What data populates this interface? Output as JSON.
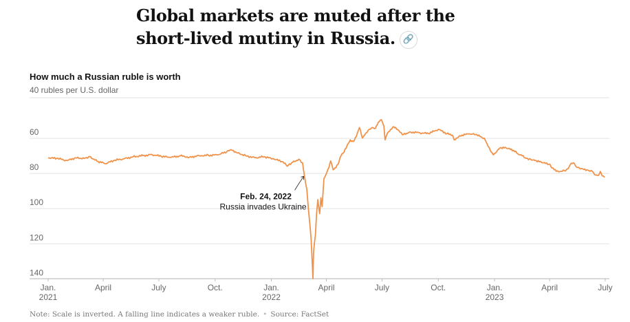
{
  "headline": "Global markets are muted after the short-lived mutiny in Russia.",
  "icons": {
    "link": "link-icon"
  },
  "chart_data": {
    "type": "line",
    "title": "How much a Russian ruble is worth",
    "ylabel": "40 rubles per U.S. dollar",
    "y_inverted": true,
    "ylim": [
      40,
      143
    ],
    "y_ticks": [
      60,
      80,
      100,
      120,
      140
    ],
    "grid": true,
    "line_color": "#f0924a",
    "x_ticks": [
      {
        "date": "2021-01-01",
        "label": "Jan.",
        "year": "2021"
      },
      {
        "date": "2021-04-01",
        "label": "April",
        "year": ""
      },
      {
        "date": "2021-07-01",
        "label": "July",
        "year": ""
      },
      {
        "date": "2021-10-01",
        "label": "Oct.",
        "year": ""
      },
      {
        "date": "2022-01-01",
        "label": "Jan.",
        "year": "2022"
      },
      {
        "date": "2022-04-01",
        "label": "April",
        "year": ""
      },
      {
        "date": "2022-07-01",
        "label": "July",
        "year": ""
      },
      {
        "date": "2022-10-01",
        "label": "Oct.",
        "year": ""
      },
      {
        "date": "2023-01-01",
        "label": "Jan.",
        "year": "2023"
      },
      {
        "date": "2023-04-01",
        "label": "April",
        "year": ""
      },
      {
        "date": "2023-07-01",
        "label": "July",
        "year": ""
      }
    ],
    "series": [
      {
        "points": [
          [
            "2021-01-01",
            74.3
          ],
          [
            "2021-01-15",
            74.5
          ],
          [
            "2021-02-01",
            75.8
          ],
          [
            "2021-02-15",
            74.2
          ],
          [
            "2021-03-01",
            74.6
          ],
          [
            "2021-03-10",
            73.5
          ],
          [
            "2021-03-22",
            76.2
          ],
          [
            "2021-04-05",
            77.5
          ],
          [
            "2021-04-20",
            75.6
          ],
          [
            "2021-05-05",
            74.8
          ],
          [
            "2021-05-20",
            73.6
          ],
          [
            "2021-06-05",
            73.0
          ],
          [
            "2021-06-20",
            72.4
          ],
          [
            "2021-07-05",
            73.4
          ],
          [
            "2021-07-20",
            74.0
          ],
          [
            "2021-08-05",
            73.1
          ],
          [
            "2021-08-20",
            73.9
          ],
          [
            "2021-09-05",
            73.0
          ],
          [
            "2021-09-20",
            72.8
          ],
          [
            "2021-10-05",
            72.6
          ],
          [
            "2021-10-20",
            70.8
          ],
          [
            "2021-10-26",
            69.6
          ],
          [
            "2021-11-05",
            71.2
          ],
          [
            "2021-11-20",
            73.0
          ],
          [
            "2021-12-05",
            74.2
          ],
          [
            "2021-12-20",
            73.6
          ],
          [
            "2022-01-05",
            74.9
          ],
          [
            "2022-01-20",
            76.5
          ],
          [
            "2022-01-27",
            79.0
          ],
          [
            "2022-02-05",
            76.7
          ],
          [
            "2022-02-15",
            75.0
          ],
          [
            "2022-02-21",
            77.0
          ],
          [
            "2022-02-24",
            84.0
          ],
          [
            "2022-02-28",
            92.0
          ],
          [
            "2022-03-03",
            105.0
          ],
          [
            "2022-03-05",
            112.0
          ],
          [
            "2022-03-07",
            120.0
          ],
          [
            "2022-03-09",
            135.0
          ],
          [
            "2022-03-10",
            143.0
          ],
          [
            "2022-03-11",
            128.0
          ],
          [
            "2022-03-14",
            118.0
          ],
          [
            "2022-03-16",
            106.0
          ],
          [
            "2022-03-18",
            98.0
          ],
          [
            "2022-03-21",
            106.0
          ],
          [
            "2022-03-23",
            97.0
          ],
          [
            "2022-03-25",
            102.0
          ],
          [
            "2022-03-28",
            86.0
          ],
          [
            "2022-03-31",
            84.0
          ],
          [
            "2022-04-05",
            80.0
          ],
          [
            "2022-04-08",
            76.0
          ],
          [
            "2022-04-12",
            81.0
          ],
          [
            "2022-04-15",
            80.0
          ],
          [
            "2022-04-20",
            78.0
          ],
          [
            "2022-04-25",
            73.0
          ],
          [
            "2022-04-30",
            71.0
          ],
          [
            "2022-05-05",
            67.0
          ],
          [
            "2022-05-10",
            64.0
          ],
          [
            "2022-05-15",
            65.0
          ],
          [
            "2022-05-20",
            62.0
          ],
          [
            "2022-05-25",
            57.0
          ],
          [
            "2022-05-30",
            63.0
          ],
          [
            "2022-06-05",
            60.0
          ],
          [
            "2022-06-10",
            58.0
          ],
          [
            "2022-06-15",
            57.0
          ],
          [
            "2022-06-20",
            57.5
          ],
          [
            "2022-06-25",
            54.0
          ],
          [
            "2022-06-30",
            52.5
          ],
          [
            "2022-07-04",
            56.0
          ],
          [
            "2022-07-06",
            64.0
          ],
          [
            "2022-07-10",
            60.0
          ],
          [
            "2022-07-15",
            58.0
          ],
          [
            "2022-07-20",
            56.5
          ],
          [
            "2022-07-25",
            58.0
          ],
          [
            "2022-08-05",
            61.0
          ],
          [
            "2022-08-15",
            59.5
          ],
          [
            "2022-09-01",
            60.0
          ],
          [
            "2022-09-15",
            60.4
          ],
          [
            "2022-10-01",
            58.0
          ],
          [
            "2022-10-15",
            60.5
          ],
          [
            "2022-10-24",
            61.3
          ],
          [
            "2022-10-27",
            64.0
          ],
          [
            "2022-11-05",
            61.6
          ],
          [
            "2022-11-20",
            60.6
          ],
          [
            "2022-12-01",
            61.0
          ],
          [
            "2022-12-15",
            63.0
          ],
          [
            "2022-12-20",
            66.5
          ],
          [
            "2022-12-25",
            70.0
          ],
          [
            "2022-12-30",
            72.5
          ],
          [
            "2023-01-10",
            68.5
          ],
          [
            "2023-01-20",
            68.6
          ],
          [
            "2023-02-01",
            70.0
          ],
          [
            "2023-02-10",
            72.5
          ],
          [
            "2023-02-15",
            73.0
          ],
          [
            "2023-02-22",
            74.5
          ],
          [
            "2023-03-01",
            75.0
          ],
          [
            "2023-03-10",
            75.8
          ],
          [
            "2023-03-20",
            77.0
          ],
          [
            "2023-03-31",
            77.8
          ],
          [
            "2023-04-05",
            80.0
          ],
          [
            "2023-04-15",
            82.0
          ],
          [
            "2023-04-25",
            81.5
          ],
          [
            "2023-05-01",
            80.5
          ],
          [
            "2023-05-05",
            78.0
          ],
          [
            "2023-05-10",
            77.0
          ],
          [
            "2023-05-15",
            79.5
          ],
          [
            "2023-05-25",
            80.5
          ],
          [
            "2023-06-01",
            81.0
          ],
          [
            "2023-06-10",
            82.0
          ],
          [
            "2023-06-15",
            84.0
          ],
          [
            "2023-06-20",
            84.2
          ],
          [
            "2023-06-23",
            82.0
          ],
          [
            "2023-06-26",
            84.5
          ],
          [
            "2023-06-30",
            85.3
          ]
        ]
      }
    ],
    "annotation": {
      "date": "2022-02-24",
      "value": 84.0,
      "title": "Feb. 24, 2022",
      "text": "Russia invades Ukraine"
    }
  },
  "footnote": {
    "note": "Note: Scale is inverted. A falling line indicates a weaker ruble.",
    "separator": "•",
    "source": "Source: FactSet"
  }
}
